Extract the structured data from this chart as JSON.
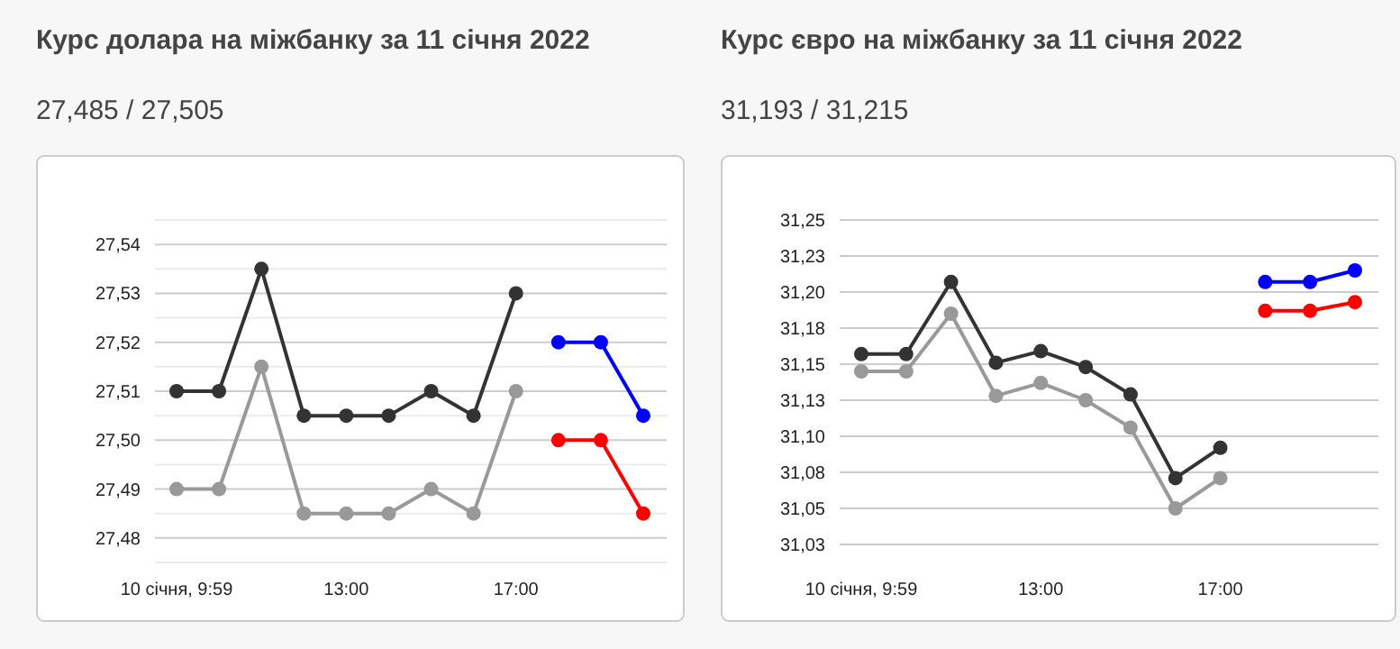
{
  "chart_data": [
    {
      "type": "line",
      "title": "Курс долара на міжбанку за 11 січня 2022",
      "subtitle": "27,485 / 27,505",
      "categories": [
        "10 січня, 9:59",
        null,
        null,
        null,
        "13:00",
        null,
        null,
        null,
        "17:00",
        null,
        null,
        null
      ],
      "series": [
        {
          "color": "#333333",
          "values": [
            27.51,
            27.51,
            27.535,
            27.505,
            27.505,
            27.505,
            27.51,
            27.505,
            27.53,
            null,
            null,
            null
          ]
        },
        {
          "color": "#999999",
          "values": [
            27.49,
            27.49,
            27.515,
            27.485,
            27.485,
            27.485,
            27.49,
            27.485,
            27.51,
            null,
            null,
            null
          ]
        },
        {
          "color": "#0000ff",
          "values": [
            null,
            null,
            null,
            null,
            null,
            null,
            null,
            null,
            null,
            27.52,
            27.52,
            27.505
          ]
        },
        {
          "color": "#ff0000",
          "values": [
            null,
            null,
            null,
            null,
            null,
            null,
            null,
            null,
            null,
            27.5,
            27.5,
            27.485
          ]
        }
      ],
      "ylim": [
        27.475,
        27.545
      ],
      "yticks": [
        {
          "value": 27.475,
          "label": null
        },
        {
          "value": 27.48,
          "label": "27,48"
        },
        {
          "value": 27.485,
          "label": null
        },
        {
          "value": 27.49,
          "label": "27,49"
        },
        {
          "value": 27.495,
          "label": null
        },
        {
          "value": 27.5,
          "label": "27,50"
        },
        {
          "value": 27.505,
          "label": null
        },
        {
          "value": 27.51,
          "label": "27,51"
        },
        {
          "value": 27.515,
          "label": null
        },
        {
          "value": 27.52,
          "label": "27,52"
        },
        {
          "value": 27.525,
          "label": null
        },
        {
          "value": 27.53,
          "label": "27,53"
        },
        {
          "value": 27.535,
          "label": null
        },
        {
          "value": 27.54,
          "label": "27,54"
        },
        {
          "value": 27.545,
          "label": null
        }
      ],
      "grid": "y",
      "marker": "circle",
      "line_style": "solid"
    },
    {
      "type": "line",
      "title": "Курс євро на міжбанку за 11 січня 2022",
      "subtitle": "31,193 / 31,215",
      "categories": [
        "10 січня, 9:59",
        null,
        null,
        null,
        "13:00",
        null,
        null,
        null,
        "17:00",
        null,
        null,
        null
      ],
      "series": [
        {
          "color": "#333333",
          "values": [
            31.157,
            31.157,
            31.207,
            31.151,
            31.159,
            31.148,
            31.129,
            31.071,
            31.092,
            null,
            null,
            null
          ]
        },
        {
          "color": "#999999",
          "values": [
            31.145,
            31.145,
            31.185,
            31.128,
            31.137,
            31.125,
            31.106,
            31.05,
            31.071,
            null,
            null,
            null
          ]
        },
        {
          "color": "#0000ff",
          "values": [
            null,
            null,
            null,
            null,
            null,
            null,
            null,
            null,
            null,
            31.207,
            31.207,
            31.215
          ]
        },
        {
          "color": "#ff0000",
          "values": [
            null,
            null,
            null,
            null,
            null,
            null,
            null,
            null,
            null,
            31.187,
            31.187,
            31.193
          ]
        }
      ],
      "ylim": [
        31.025,
        31.25
      ],
      "yticks": [
        {
          "value": 31.025,
          "label": "31,03"
        },
        {
          "value": 31.05,
          "label": "31,05"
        },
        {
          "value": 31.075,
          "label": "31,08"
        },
        {
          "value": 31.1,
          "label": "31,10"
        },
        {
          "value": 31.125,
          "label": "31,13"
        },
        {
          "value": 31.15,
          "label": "31,15"
        },
        {
          "value": 31.175,
          "label": "31,18"
        },
        {
          "value": 31.2,
          "label": "31,20"
        },
        {
          "value": 31.225,
          "label": "31,23"
        },
        {
          "value": 31.25,
          "label": "31,25"
        }
      ],
      "grid": "y",
      "marker": "circle",
      "line_style": "solid"
    }
  ]
}
